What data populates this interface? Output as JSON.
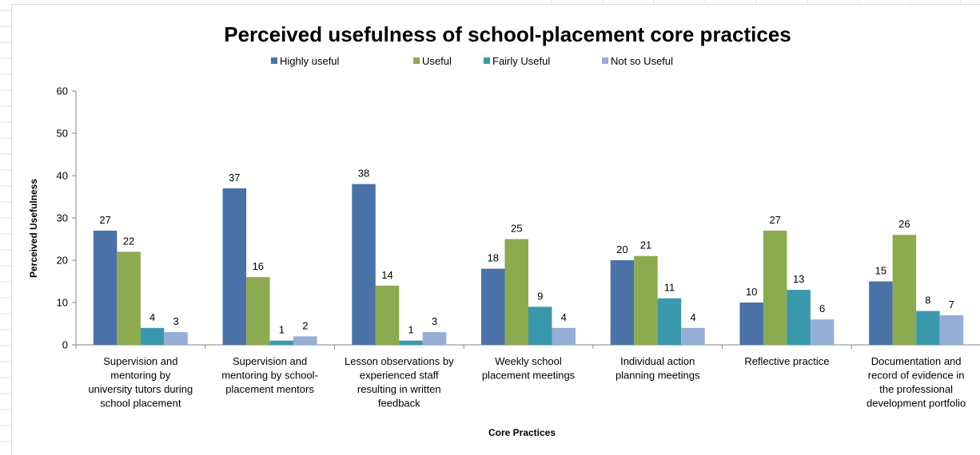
{
  "chart_data": {
    "type": "bar",
    "title": "Perceived usefulness of school-placement core practices",
    "xlabel": "Core Practices",
    "ylabel": "Perceived Usefulness",
    "ylim": [
      0,
      60
    ],
    "yticks": [
      0,
      10,
      20,
      30,
      40,
      50,
      60
    ],
    "grid": false,
    "legend_position": "top",
    "categories": [
      [
        "Supervision and",
        "mentoring by",
        "university tutors during",
        "school placement"
      ],
      [
        "Supervision and",
        "mentoring by school-",
        "placement mentors"
      ],
      [
        "Lesson observations by",
        "experienced staff",
        "resulting in written",
        "feedback"
      ],
      [
        "Weekly school",
        "placement meetings"
      ],
      [
        "Individual action",
        "planning meetings"
      ],
      [
        "Reflective practice"
      ],
      [
        "Documentation and",
        "record of evidence in",
        "the professional",
        "development portfolio"
      ]
    ],
    "series": [
      {
        "name": "Highly useful",
        "color": "#4a72a9",
        "values": [
          27,
          37,
          38,
          18,
          20,
          10,
          15
        ]
      },
      {
        "name": "Useful",
        "color": "#8cab4f",
        "values": [
          22,
          16,
          14,
          25,
          21,
          27,
          26
        ]
      },
      {
        "name": "Fairly Useful",
        "color": "#3a98ad",
        "values": [
          4,
          1,
          1,
          9,
          11,
          13,
          8
        ]
      },
      {
        "name": "Not so Useful",
        "color": "#96add6",
        "values": [
          3,
          2,
          3,
          4,
          4,
          6,
          7
        ]
      }
    ]
  }
}
